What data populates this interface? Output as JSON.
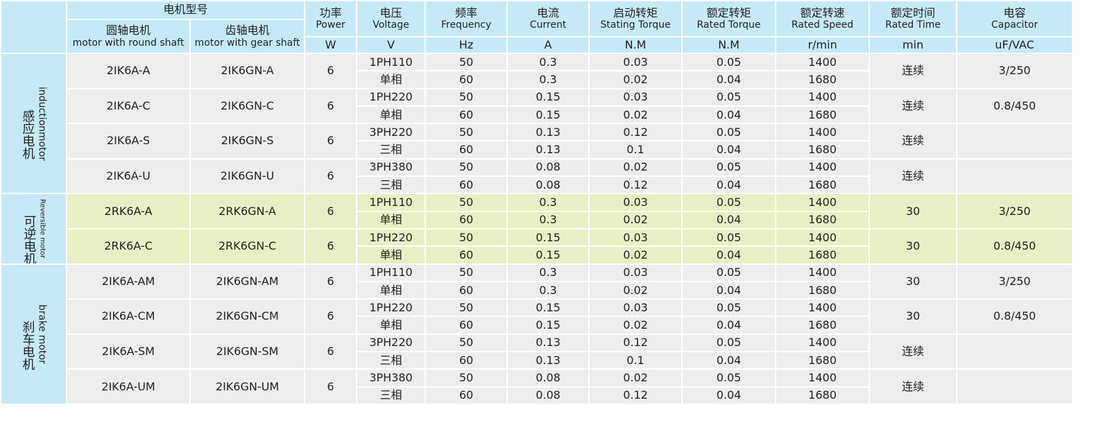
{
  "table": {
    "model_header": "电机型号",
    "model_columns": [
      {
        "cn": "圆轴电机",
        "en": "motor with round shaft"
      },
      {
        "cn": "齿轴电机",
        "en": "motor with gear shaft"
      }
    ],
    "columns": [
      {
        "cn": "功率",
        "en": "Power",
        "unit": "W"
      },
      {
        "cn": "电压",
        "en": "Voltage",
        "unit": "V"
      },
      {
        "cn": "频率",
        "en": "Frequency",
        "unit": "Hz"
      },
      {
        "cn": "电流",
        "en": "Current",
        "unit": "A"
      },
      {
        "cn": "启动转矩",
        "en": "Stating Torque",
        "unit": "N.M"
      },
      {
        "cn": "额定转矩",
        "en": "Rated Torque",
        "unit": "N.M"
      },
      {
        "cn": "额定转速",
        "en": "Rated Speed",
        "unit": "r/min"
      },
      {
        "cn": "额定时间",
        "en": "Rated Time",
        "unit": "min"
      },
      {
        "cn": "电容",
        "en": "Capacitor",
        "unit": "uF/VAC"
      }
    ],
    "groups": [
      {
        "cn": "感应电机",
        "en": "inductionmotor",
        "models": [
          {
            "round": "2IK6A-A",
            "gear": "2IK6GN-A",
            "power": 6,
            "time": "连续",
            "capacitor": "3/250",
            "rows": [
              [
                "1PH110",
                50,
                0.3,
                0.03,
                0.05,
                1400
              ],
              [
                "单相",
                60,
                0.3,
                0.02,
                0.04,
                1680
              ]
            ]
          },
          {
            "round": "2IK6A-C",
            "gear": "2IK6GN-C",
            "power": 6,
            "time": "连续",
            "capacitor": "0.8/450",
            "rows": [
              [
                "1PH220",
                50,
                0.15,
                0.03,
                0.05,
                1400
              ],
              [
                "单相",
                60,
                0.15,
                0.02,
                0.04,
                1680
              ]
            ]
          },
          {
            "round": "2IK6A-S",
            "gear": "2IK6GN-S",
            "power": 6,
            "time": "连续",
            "rows": [
              [
                "3PH220",
                50,
                0.13,
                0.12,
                0.05,
                1400
              ],
              [
                "三相",
                60,
                0.13,
                0.1,
                0.04,
                1680
              ]
            ]
          },
          {
            "round": "2IK6A-U",
            "gear": "2IK6GN-U",
            "power": 6,
            "time": "连续",
            "rows": [
              [
                "3PH380",
                50,
                0.08,
                0.02,
                0.05,
                1400
              ],
              [
                "三相",
                60,
                0.08,
                0.12,
                0.04,
                1680
              ]
            ]
          }
        ]
      },
      {
        "cn": "可逆电机",
        "en": "Reversible motor",
        "models": [
          {
            "round": "2RK6A-A",
            "gear": "2RK6GN-A",
            "power": 6,
            "time": 30,
            "capacitor": "3/250",
            "rows": [
              [
                "1PH110",
                50,
                0.3,
                0.03,
                0.05,
                1400
              ],
              [
                "单相",
                60,
                0.3,
                0.02,
                0.04,
                1680
              ]
            ]
          },
          {
            "round": "2RK6A-C",
            "gear": "2RK6GN-C",
            "power": 6,
            "time": 30,
            "capacitor": "0.8/450",
            "rows": [
              [
                "1PH220",
                50,
                0.15,
                0.03,
                0.05,
                1400
              ],
              [
                "单相",
                60,
                0.15,
                0.02,
                0.04,
                1680
              ]
            ]
          }
        ]
      },
      {
        "cn": "刹车电机",
        "en": "brake motor",
        "models": [
          {
            "round": "2IK6A-AM",
            "gear": "2IK6GN-AM",
            "power": 6,
            "time": 30,
            "capacitor": "3/250",
            "rows": [
              [
                "1PH110",
                50,
                0.3,
                0.03,
                0.05,
                1400
              ],
              [
                "单相",
                60,
                0.3,
                0.02,
                0.04,
                1680
              ]
            ]
          },
          {
            "round": "2IK6A-CM",
            "gear": "2IK6GN-CM",
            "power": 6,
            "time": 30,
            "capacitor": "0.8/450",
            "rows": [
              [
                "1PH220",
                50,
                0.15,
                0.03,
                0.05,
                1400
              ],
              [
                "单相",
                60,
                0.15,
                0.02,
                0.04,
                1680
              ]
            ]
          },
          {
            "round": "2IK6A-SM",
            "gear": "2IK6GN-SM",
            "power": 6,
            "time": "连续",
            "rows": [
              [
                "3PH220",
                50,
                0.13,
                0.12,
                0.05,
                1400
              ],
              [
                "三相",
                60,
                0.13,
                0.1,
                0.04,
                1680
              ]
            ]
          },
          {
            "round": "2IK6A-UM",
            "gear": "2IK6GN-UM",
            "power": 6,
            "time": "连续",
            "rows": [
              [
                "3PH380",
                50,
                0.08,
                0.02,
                0.05,
                1400
              ],
              [
                "三相",
                60,
                0.08,
                0.12,
                0.04,
                1680
              ]
            ]
          }
        ]
      }
    ]
  }
}
